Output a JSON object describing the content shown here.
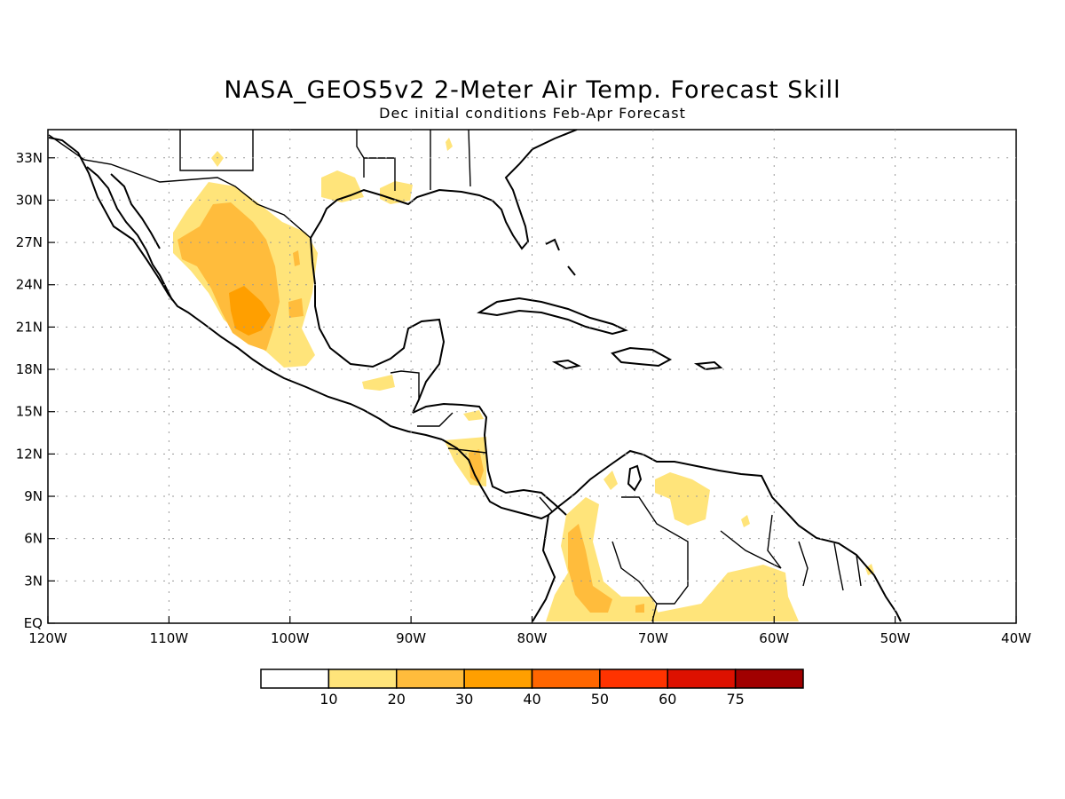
{
  "title": "NASA_GEOS5v2 2-Meter Air Temp. Forecast Skill",
  "subtitle": "Dec initial conditions  Feb-Apr Forecast",
  "map": {
    "lon_range": [
      -120,
      -40
    ],
    "lat_range": [
      0,
      35
    ],
    "lon_ticks": [
      {
        "lon": -120,
        "label": "120W"
      },
      {
        "lon": -110,
        "label": "110W"
      },
      {
        "lon": -100,
        "label": "100W"
      },
      {
        "lon": -90,
        "label": "90W"
      },
      {
        "lon": -80,
        "label": "80W"
      },
      {
        "lon": -70,
        "label": "70W"
      },
      {
        "lon": -60,
        "label": "60W"
      },
      {
        "lon": -50,
        "label": "50W"
      },
      {
        "lon": -40,
        "label": "40W"
      }
    ],
    "lat_ticks": [
      {
        "lat": 0,
        "label": "EQ"
      },
      {
        "lat": 3,
        "label": "3N"
      },
      {
        "lat": 6,
        "label": "6N"
      },
      {
        "lat": 9,
        "label": "9N"
      },
      {
        "lat": 12,
        "label": "12N"
      },
      {
        "lat": 15,
        "label": "15N"
      },
      {
        "lat": 18,
        "label": "18N"
      },
      {
        "lat": 21,
        "label": "21N"
      },
      {
        "lat": 24,
        "label": "24N"
      },
      {
        "lat": 27,
        "label": "27N"
      },
      {
        "lat": 30,
        "label": "30N"
      },
      {
        "lat": 33,
        "label": "33N"
      }
    ],
    "grid": true
  },
  "colorbar": {
    "colors": [
      "#ffffff",
      "#ffe47a",
      "#ffbc3c",
      "#ff9f00",
      "#ff6600",
      "#ff3300",
      "#dd1100",
      "#a10000"
    ],
    "labels": [
      "10",
      "20",
      "30",
      "40",
      "50",
      "60",
      "75"
    ]
  }
}
